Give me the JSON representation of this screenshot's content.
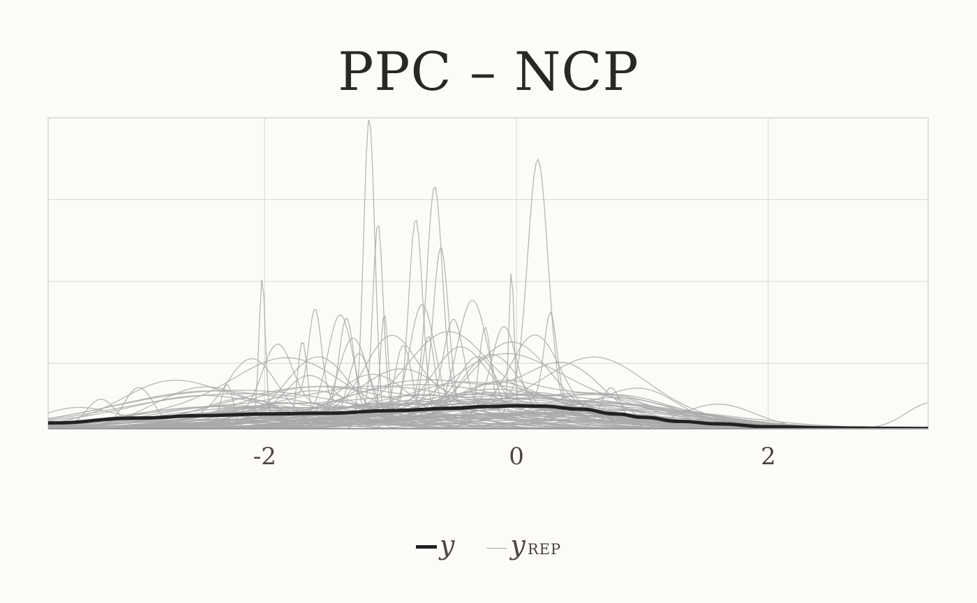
{
  "chart_data": {
    "type": "line",
    "title": "PPC – NCP",
    "xlabel": "",
    "ylabel": "",
    "xlim": [
      -3.72,
      3.27
    ],
    "ylim": [
      0,
      1.9
    ],
    "x_ticks": [
      "-2",
      "0",
      "2"
    ],
    "x_tick_values": [
      -2,
      0,
      2
    ],
    "y_gridlines": [
      0.4,
      0.9,
      1.4
    ],
    "grid": true,
    "legend": {
      "placement": "bottom-center",
      "y_label": "y",
      "yrep_label": "y",
      "yrep_subscript": "REP"
    },
    "colors": {
      "y": "#222222",
      "yrep": "#a9a9a9",
      "grid": "#dedddb",
      "background": "#fcfbf8"
    },
    "series": [
      {
        "name": "y",
        "x": [
          -3.72,
          -3.0,
          -2.5,
          -2.0,
          -1.5,
          -1.0,
          -0.5,
          -0.25,
          0.0,
          0.2,
          0.5,
          0.8,
          1.0,
          1.3,
          1.6,
          2.0,
          2.5,
          3.0,
          3.27
        ],
        "y": [
          0.035,
          0.065,
          0.08,
          0.09,
          0.095,
          0.11,
          0.125,
          0.135,
          0.14,
          0.138,
          0.12,
          0.09,
          0.07,
          0.045,
          0.03,
          0.012,
          0.005,
          0.002,
          0.001
        ]
      },
      {
        "name": "y_rep",
        "spikes": [
          [
            -1.17,
            1.9,
            0.045
          ],
          [
            0.17,
            1.5,
            0.08
          ],
          [
            -0.65,
            1.3,
            0.06
          ],
          [
            -0.8,
            1.22,
            0.055
          ],
          [
            -1.1,
            1.15,
            0.04
          ],
          [
            -0.6,
            1.0,
            0.06
          ],
          [
            -2.02,
            0.87,
            0.025
          ],
          [
            -0.04,
            0.87,
            0.02
          ],
          [
            -0.35,
            0.7,
            0.12
          ],
          [
            -0.75,
            0.68,
            0.1
          ],
          [
            -1.4,
            0.62,
            0.1
          ],
          [
            -1.05,
            0.62,
            0.03
          ],
          [
            -1.7,
            0.53,
            0.04
          ],
          [
            -1.6,
            0.55,
            0.05
          ],
          [
            0.27,
            0.55,
            0.05
          ],
          [
            -0.25,
            0.58,
            0.05
          ],
          [
            -0.1,
            0.52,
            0.1
          ],
          [
            -0.5,
            0.55,
            0.08
          ],
          [
            -0.9,
            0.5,
            0.07
          ],
          [
            -1.3,
            0.52,
            0.12
          ],
          [
            -1.25,
            0.45,
            0.09
          ],
          [
            -1.9,
            0.4,
            0.12
          ],
          [
            -2.1,
            0.38,
            0.2
          ],
          [
            0.15,
            0.5,
            0.2
          ],
          [
            -0.2,
            0.45,
            0.25
          ],
          [
            -0.55,
            0.4,
            0.3
          ],
          [
            -1.0,
            0.42,
            0.2
          ],
          [
            -1.55,
            0.35,
            0.25
          ],
          [
            -3.0,
            0.25,
            0.12
          ],
          [
            -3.3,
            0.18,
            0.12
          ],
          [
            0.75,
            0.25,
            0.08
          ],
          [
            -0.7,
            0.48,
            0.05
          ],
          [
            -2.3,
            0.27,
            0.05
          ],
          [
            -1.35,
            0.6,
            0.06
          ],
          [
            0.0,
            0.38,
            0.3
          ],
          [
            -0.45,
            0.35,
            0.2
          ],
          [
            -1.8,
            0.28,
            0.4
          ],
          [
            -2.5,
            0.22,
            0.4
          ],
          [
            0.4,
            0.3,
            0.3
          ],
          [
            1.0,
            0.2,
            0.3
          ],
          [
            1.6,
            0.15,
            0.3
          ],
          [
            -0.9,
            0.35,
            0.35
          ],
          [
            -1.15,
            0.3,
            0.3
          ],
          [
            -0.15,
            0.3,
            0.4
          ],
          [
            0.6,
            0.22,
            0.35
          ],
          [
            -2.8,
            0.17,
            0.35
          ],
          [
            -3.5,
            0.12,
            0.3
          ],
          [
            3.3,
            0.16,
            0.2
          ],
          [
            -0.3,
            0.32,
            0.15
          ],
          [
            -1.65,
            0.27,
            0.2
          ]
        ]
      }
    ]
  }
}
